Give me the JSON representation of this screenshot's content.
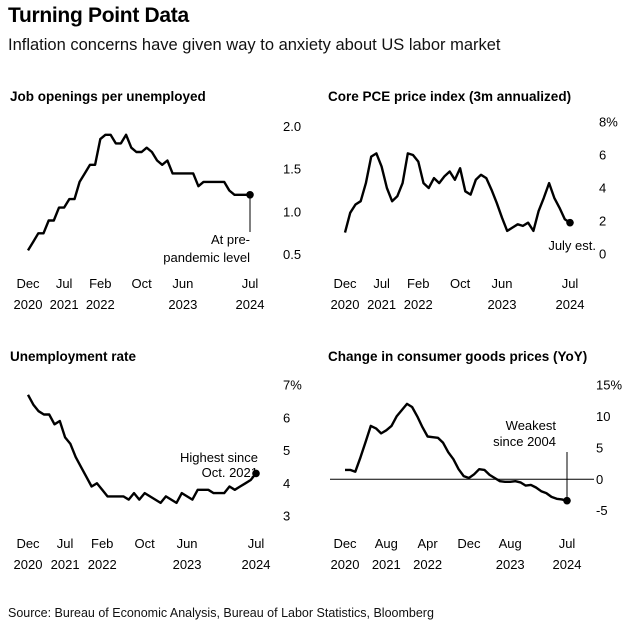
{
  "header": {
    "title": "Turning Point Data",
    "subtitle": "Inflation concerns have given way to anxiety about US labor market"
  },
  "source": "Source: Bureau of Economic Analysis, Bureau of Labor Statistics, Bloomberg",
  "chart_data": [
    {
      "type": "line",
      "title": "Job openings per unemployed",
      "x_ticks": [
        {
          "date": "2020-12",
          "top": "Dec",
          "bottom": "2020"
        },
        {
          "date": "2021-07",
          "top": "Jul",
          "bottom": "2021"
        },
        {
          "date": "2022-02",
          "top": "Feb",
          "bottom": "2022"
        },
        {
          "date": "2022-10",
          "top": "Oct",
          "bottom": ""
        },
        {
          "date": "2023-06",
          "top": "Jun",
          "bottom": "2023"
        },
        {
          "date": "2024-07",
          "top": "Jul",
          "bottom": "2024"
        }
      ],
      "y_ticks": [
        {
          "value": 0.5,
          "label": "0.5"
        },
        {
          "value": 1.0,
          "label": "1.0"
        },
        {
          "value": 1.5,
          "label": "1.5"
        },
        {
          "value": 2.0,
          "label": "2.0"
        }
      ],
      "ylim": [
        0.45,
        2.05
      ],
      "grid": false,
      "baseline": null,
      "annotation": {
        "lines": [
          "At pre-",
          "pandemic level"
        ],
        "at": "2024-07"
      },
      "series": [
        {
          "x": [
            "2020-12",
            "2021-01",
            "2021-02",
            "2021-03",
            "2021-04",
            "2021-05",
            "2021-06",
            "2021-07",
            "2021-08",
            "2021-09",
            "2021-10",
            "2021-11",
            "2021-12",
            "2022-01",
            "2022-02",
            "2022-03",
            "2022-04",
            "2022-05",
            "2022-06",
            "2022-07",
            "2022-08",
            "2022-09",
            "2022-10",
            "2022-11",
            "2022-12",
            "2023-01",
            "2023-02",
            "2023-03",
            "2023-04",
            "2023-05",
            "2023-06",
            "2023-07",
            "2023-08",
            "2023-09",
            "2023-10",
            "2023-11",
            "2023-12",
            "2024-01",
            "2024-02",
            "2024-03",
            "2024-04",
            "2024-05",
            "2024-06",
            "2024-07"
          ],
          "y": [
            0.55,
            0.65,
            0.75,
            0.75,
            0.9,
            0.9,
            1.05,
            1.05,
            1.15,
            1.15,
            1.35,
            1.45,
            1.55,
            1.55,
            1.85,
            1.9,
            1.9,
            1.8,
            1.8,
            1.9,
            1.75,
            1.7,
            1.7,
            1.75,
            1.7,
            1.6,
            1.55,
            1.6,
            1.45,
            1.45,
            1.45,
            1.45,
            1.45,
            1.3,
            1.35,
            1.35,
            1.35,
            1.35,
            1.35,
            1.25,
            1.2,
            1.2,
            1.2,
            1.2
          ]
        }
      ]
    },
    {
      "type": "line",
      "title": "Core PCE price index (3m annualized)",
      "x_ticks": [
        {
          "date": "2020-12",
          "top": "Dec",
          "bottom": "2020"
        },
        {
          "date": "2021-07",
          "top": "Jul",
          "bottom": "2021"
        },
        {
          "date": "2022-02",
          "top": "Feb",
          "bottom": "2022"
        },
        {
          "date": "2022-10",
          "top": "Oct",
          "bottom": ""
        },
        {
          "date": "2023-06",
          "top": "Jun",
          "bottom": "2023"
        },
        {
          "date": "2024-07",
          "top": "Jul",
          "bottom": "2024"
        }
      ],
      "y_ticks": [
        {
          "value": 0,
          "label": "0"
        },
        {
          "value": 2,
          "label": "2"
        },
        {
          "value": 4,
          "label": "4"
        },
        {
          "value": 6,
          "label": "6"
        },
        {
          "value": 8,
          "label": "8%"
        }
      ],
      "ylim": [
        0,
        8
      ],
      "grid": false,
      "baseline": null,
      "annotation": {
        "lines": [
          "July est."
        ],
        "at": "2024-07"
      },
      "series": [
        {
          "x": [
            "2020-12",
            "2021-01",
            "2021-02",
            "2021-03",
            "2021-04",
            "2021-05",
            "2021-06",
            "2021-07",
            "2021-08",
            "2021-09",
            "2021-10",
            "2021-11",
            "2021-12",
            "2022-01",
            "2022-02",
            "2022-03",
            "2022-04",
            "2022-05",
            "2022-06",
            "2022-07",
            "2022-08",
            "2022-09",
            "2022-10",
            "2022-11",
            "2022-12",
            "2023-01",
            "2023-02",
            "2023-03",
            "2023-04",
            "2023-05",
            "2023-06",
            "2023-07",
            "2023-08",
            "2023-09",
            "2023-10",
            "2023-11",
            "2023-12",
            "2024-01",
            "2024-02",
            "2024-03",
            "2024-04",
            "2024-05",
            "2024-06",
            "2024-07"
          ],
          "y": [
            1.3,
            2.5,
            3.0,
            3.2,
            4.3,
            5.9,
            6.1,
            5.3,
            4.0,
            3.2,
            3.5,
            4.3,
            6.1,
            6.0,
            5.6,
            4.3,
            4.0,
            4.6,
            4.3,
            4.7,
            5.0,
            4.5,
            5.2,
            3.8,
            3.6,
            4.5,
            4.8,
            4.6,
            3.9,
            3.1,
            2.2,
            1.4,
            1.6,
            1.8,
            1.7,
            1.9,
            1.4,
            2.6,
            3.4,
            4.3,
            3.4,
            2.8,
            2.1,
            1.9
          ]
        }
      ]
    },
    {
      "type": "line",
      "title": "Unemployment rate",
      "x_ticks": [
        {
          "date": "2020-12",
          "top": "Dec",
          "bottom": "2020"
        },
        {
          "date": "2021-07",
          "top": "Jul",
          "bottom": "2021"
        },
        {
          "date": "2022-02",
          "top": "Feb",
          "bottom": "2022"
        },
        {
          "date": "2022-10",
          "top": "Oct",
          "bottom": ""
        },
        {
          "date": "2023-06",
          "top": "Jun",
          "bottom": "2023"
        },
        {
          "date": "2024-07",
          "top": "Jul",
          "bottom": "2024"
        }
      ],
      "y_ticks": [
        {
          "value": 3,
          "label": "3"
        },
        {
          "value": 4,
          "label": "4"
        },
        {
          "value": 5,
          "label": "5"
        },
        {
          "value": 6,
          "label": "6"
        },
        {
          "value": 7,
          "label": "7%"
        }
      ],
      "ylim": [
        3,
        7
      ],
      "grid": false,
      "baseline": null,
      "annotation": {
        "lines": [
          "Highest since",
          "Oct. 2021"
        ],
        "at": "2024-07"
      },
      "series": [
        {
          "x": [
            "2020-12",
            "2021-01",
            "2021-02",
            "2021-03",
            "2021-04",
            "2021-05",
            "2021-06",
            "2021-07",
            "2021-08",
            "2021-09",
            "2021-10",
            "2021-11",
            "2021-12",
            "2022-01",
            "2022-02",
            "2022-03",
            "2022-04",
            "2022-05",
            "2022-06",
            "2022-07",
            "2022-08",
            "2022-09",
            "2022-10",
            "2022-11",
            "2022-12",
            "2023-01",
            "2023-02",
            "2023-03",
            "2023-04",
            "2023-05",
            "2023-06",
            "2023-07",
            "2023-08",
            "2023-09",
            "2023-10",
            "2023-11",
            "2023-12",
            "2024-01",
            "2024-02",
            "2024-03",
            "2024-04",
            "2024-05",
            "2024-06",
            "2024-07"
          ],
          "y": [
            6.7,
            6.4,
            6.2,
            6.1,
            6.1,
            5.8,
            5.9,
            5.4,
            5.2,
            4.8,
            4.5,
            4.2,
            3.9,
            4.0,
            3.8,
            3.6,
            3.6,
            3.6,
            3.6,
            3.5,
            3.7,
            3.5,
            3.7,
            3.6,
            3.5,
            3.4,
            3.6,
            3.5,
            3.4,
            3.7,
            3.6,
            3.5,
            3.8,
            3.8,
            3.8,
            3.7,
            3.7,
            3.7,
            3.9,
            3.8,
            3.9,
            4.0,
            4.1,
            4.3
          ]
        }
      ]
    },
    {
      "type": "line",
      "title": "Change in consumer goods prices (YoY)",
      "x_ticks": [
        {
          "date": "2020-12",
          "top": "Dec",
          "bottom": "2020"
        },
        {
          "date": "2021-08",
          "top": "Aug",
          "bottom": "2021"
        },
        {
          "date": "2022-04",
          "top": "Apr",
          "bottom": "2022"
        },
        {
          "date": "2022-12",
          "top": "Dec",
          "bottom": ""
        },
        {
          "date": "2023-08",
          "top": "Aug",
          "bottom": "2023"
        },
        {
          "date": "2024-07",
          "top": "Jul",
          "bottom": "2024"
        }
      ],
      "y_ticks": [
        {
          "value": -5,
          "label": "-5"
        },
        {
          "value": 0,
          "label": "0"
        },
        {
          "value": 5,
          "label": "5"
        },
        {
          "value": 10,
          "label": "10"
        },
        {
          "value": 15,
          "label": "15%"
        }
      ],
      "ylim": [
        -6,
        15
      ],
      "grid": false,
      "baseline": 0,
      "annotation": {
        "lines": [
          "Weakest",
          "since 2004"
        ],
        "at": "2024-07"
      },
      "series": [
        {
          "x": [
            "2020-12",
            "2021-01",
            "2021-02",
            "2021-03",
            "2021-04",
            "2021-05",
            "2021-06",
            "2021-07",
            "2021-08",
            "2021-09",
            "2021-10",
            "2021-11",
            "2021-12",
            "2022-01",
            "2022-02",
            "2022-03",
            "2022-04",
            "2022-05",
            "2022-06",
            "2022-07",
            "2022-08",
            "2022-09",
            "2022-10",
            "2022-11",
            "2022-12",
            "2023-01",
            "2023-02",
            "2023-03",
            "2023-04",
            "2023-05",
            "2023-06",
            "2023-07",
            "2023-08",
            "2023-09",
            "2023-10",
            "2023-11",
            "2023-12",
            "2024-01",
            "2024-02",
            "2024-03",
            "2024-04",
            "2024-05",
            "2024-06",
            "2024-07"
          ],
          "y": [
            1.5,
            1.5,
            1.2,
            3.5,
            6.0,
            8.5,
            8.1,
            7.3,
            7.8,
            8.5,
            10.0,
            11.0,
            12.0,
            11.5,
            10.0,
            8.3,
            6.8,
            6.7,
            6.6,
            5.8,
            4.3,
            3.2,
            1.6,
            0.5,
            0.2,
            0.8,
            1.6,
            1.5,
            0.7,
            0.2,
            -0.3,
            -0.4,
            -0.4,
            -0.3,
            -0.5,
            -1.0,
            -0.9,
            -1.3,
            -1.9,
            -2.2,
            -2.8,
            -3.1,
            -3.2,
            -3.4
          ]
        }
      ]
    }
  ]
}
